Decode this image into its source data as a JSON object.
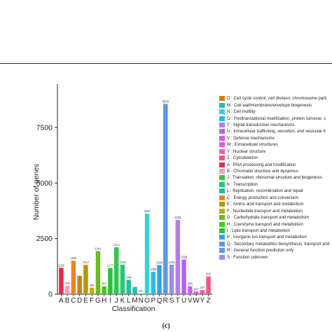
{
  "caption": "(c)",
  "chart_data": {
    "type": "bar",
    "xlabel": "Classification",
    "ylabel": "Number of genes",
    "ylim": [
      0,
      9200
    ],
    "yticks": [
      0,
      2500,
      5000,
      7500
    ],
    "grid": false,
    "legend_position": "right",
    "categories": [
      "A",
      "B",
      "C",
      "D",
      "E",
      "F",
      "G",
      "H",
      "I",
      "J",
      "K",
      "L",
      "M",
      "N",
      "O",
      "P",
      "Q",
      "R",
      "S",
      "T",
      "U",
      "V",
      "W",
      "Y",
      "Z"
    ],
    "values": [
      1189,
      378,
      1506,
      827,
      1317,
      290,
      1941,
      357,
      1177,
      2112,
      1328,
      649,
      325,
      25,
      3620,
      1009,
      1308,
      8559,
      1328,
      3338,
      1558,
      356,
      127,
      187,
      801
    ],
    "value_labels": [
      "1189",
      "378",
      "1506",
      "",
      "1317",
      "290",
      "1941",
      "357",
      "1177",
      "2112",
      "1328",
      "649",
      "",
      "25",
      "3620",
      "1009",
      "1308",
      "8559",
      "1328",
      "3338",
      "1558",
      "356",
      "127",
      "187",
      "801"
    ],
    "colors": [
      "#e8294e",
      "#f6a0b5",
      "#f2831f",
      "#c7821a",
      "#b5960e",
      "#b4b10e",
      "#6bbd1e",
      "#46c81c",
      "#27c23a",
      "#33c552",
      "#2ac475",
      "#25c09a",
      "#21bcbe",
      "#1fbcbc",
      "#37d1d1",
      "#26bce3",
      "#2da4e5",
      "#5d95ea",
      "#9d8ce8",
      "#b37cea",
      "#b663e6",
      "#d15fe3",
      "#e45ed6",
      "#ef5eb8",
      "#f05587"
    ],
    "legend": [
      {
        "label": "D : Cell cycle control, cell division, chromosome parti",
        "color": "#c7821a"
      },
      {
        "label": "M : Cell wall/membrane/envelope biogenesis",
        "color": "#21bcbe"
      },
      {
        "label": "N : Cell motility",
        "color": "#37d1d1"
      },
      {
        "label": "O : Posttranslational modification, protein turnover, c",
        "color": "#26bce3"
      },
      {
        "label": "T : Signal transduction mechanisms",
        "color": "#b37cea"
      },
      {
        "label": "U : Intracellular trafficking, secretion, and vesicular tr",
        "color": "#b663e6"
      },
      {
        "label": "V : Defense mechanisms",
        "color": "#d15fe3"
      },
      {
        "label": "W : Extracellular structures",
        "color": "#e45ed6"
      },
      {
        "label": "Y : Nuclear structure",
        "color": "#ef5eb8"
      },
      {
        "label": "Z : Cytoskeleton",
        "color": "#f05587"
      },
      {
        "label": "A : RNA processing and modification",
        "color": "#e8294e"
      },
      {
        "label": "B : Chromatin structure and dynamics",
        "color": "#f6a0b5"
      },
      {
        "label": "J : Translation, ribosomal structure and biogenesis",
        "color": "#33c552"
      },
      {
        "label": "K : Transcription",
        "color": "#2ac475"
      },
      {
        "label": "L : Replication, recombination and repair",
        "color": "#25c09a"
      },
      {
        "label": "C : Energy production and conversion",
        "color": "#f2831f"
      },
      {
        "label": "E : Amino acid transport and metabolism",
        "color": "#b5960e"
      },
      {
        "label": "F : Nucleotide transport and metabolism",
        "color": "#b4b10e"
      },
      {
        "label": "G : Carbohydrate transport and metabolism",
        "color": "#6bbd1e"
      },
      {
        "label": "H : Coenzyme transport and metabolism",
        "color": "#46c81c"
      },
      {
        "label": "I : Lipid transport and metabolism",
        "color": "#27c23a"
      },
      {
        "label": "P : Inorganic ion transport and metabolism",
        "color": "#2da4e5"
      },
      {
        "label": "Q : Secondary metabolites biosynthesis, transport and",
        "color": "#5d95ea"
      },
      {
        "label": "R : General function prediction only",
        "color": "#5d95ea"
      },
      {
        "label": "S : Function unknown",
        "color": "#9d8ce8"
      }
    ]
  }
}
